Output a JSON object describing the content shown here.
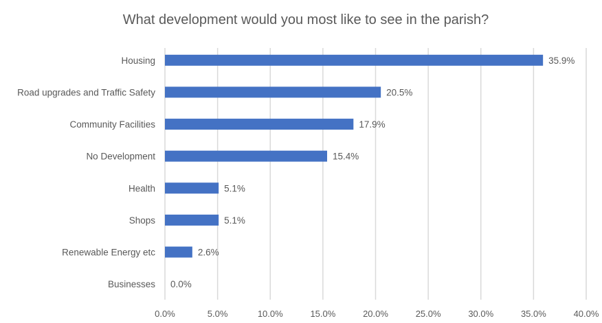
{
  "chart_data": {
    "type": "bar",
    "orientation": "horizontal",
    "title": "What development would you most like to see in the parish?",
    "categories": [
      "Housing",
      "Road upgrades and Traffic Safety",
      "Community Facilities",
      "No Development",
      "Health",
      "Shops",
      "Renewable Energy etc",
      "Businesses"
    ],
    "values": [
      35.9,
      20.5,
      17.9,
      15.4,
      5.1,
      5.1,
      2.6,
      0.0
    ],
    "data_labels": [
      "35.9%",
      "20.5%",
      "17.9%",
      "15.4%",
      "5.1%",
      "5.1%",
      "2.6%",
      "0.0%"
    ],
    "xlim": [
      0,
      40
    ],
    "xticks": [
      0,
      5,
      10,
      15,
      20,
      25,
      30,
      35,
      40
    ],
    "xtick_labels": [
      "0.0%",
      "5.0%",
      "10.0%",
      "15.0%",
      "20.0%",
      "25.0%",
      "30.0%",
      "35.0%",
      "40.0%"
    ],
    "xlabel": "",
    "ylabel": "",
    "grid": true,
    "bar_color": "#4472C4"
  }
}
